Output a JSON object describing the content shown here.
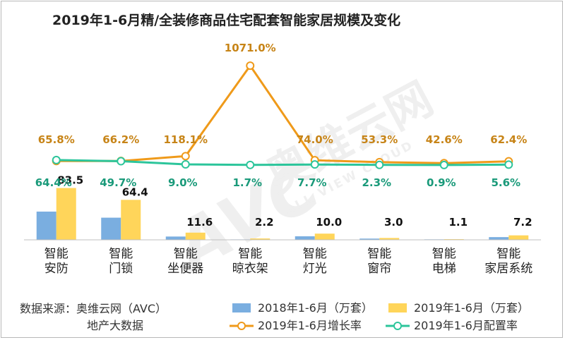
{
  "chart_data": {
    "type": "bar",
    "title": "2019年1-6月精/全装修商品住宅配套智能家居规模及变化",
    "categories": [
      [
        "智能",
        "安防"
      ],
      [
        "智能",
        "门锁"
      ],
      [
        "智能",
        "坐便器"
      ],
      [
        "智能",
        "晾衣架"
      ],
      [
        "智能",
        "灯光"
      ],
      [
        "智能",
        "窗帘"
      ],
      [
        "智能",
        "电梯"
      ],
      [
        "智能",
        "家居系统"
      ]
    ],
    "series": [
      {
        "name": "2018年1-6月（万套）",
        "type": "bar",
        "color": "#7aaee0",
        "values": [
          45.5,
          35.7,
          5.3,
          0.7,
          5.7,
          2.0,
          0.8,
          4.4
        ]
      },
      {
        "name": "2019年1-6月（万套）",
        "type": "bar",
        "color": "#ffd55a",
        "values": [
          83.5,
          64.4,
          11.6,
          2.2,
          10.0,
          3.0,
          1.1,
          7.2
        ],
        "labels": [
          "83.5",
          "64.4",
          "11.6",
          "2.2",
          "10.0",
          "3.0",
          "1.1",
          "7.2"
        ]
      },
      {
        "name": "2019年1-6月增长率",
        "type": "line",
        "color": "#ef9a1a",
        "values": [
          65.8,
          66.2,
          118.1,
          1071.0,
          74.0,
          53.3,
          42.6,
          62.4
        ],
        "labels": [
          "65.8%",
          "66.2%",
          "118.1%",
          "1071.0%",
          "74.0%",
          "53.3%",
          "42.6%",
          "62.4%"
        ]
      },
      {
        "name": "2019年1-6月配置率",
        "type": "line",
        "color": "#2cc59b",
        "values": [
          64.4,
          49.7,
          9.0,
          1.7,
          7.7,
          2.3,
          0.9,
          5.6
        ],
        "labels": [
          "64.4%",
          "49.7%",
          "9.0%",
          "1.7%",
          "7.7%",
          "2.3%",
          "0.9%",
          "5.6%"
        ]
      }
    ],
    "label_colors": {
      "growth": "#c78417",
      "rate": "#1a9a7a",
      "value": "#111111"
    }
  },
  "source": {
    "line1": "数据来源：奥维云网（AVC）",
    "line2": "地产大数据"
  },
  "watermark": {
    "logo_text": "AVC",
    "cn_text": "奥维云网",
    "en_text": "ALL VIEW CLOUD"
  }
}
